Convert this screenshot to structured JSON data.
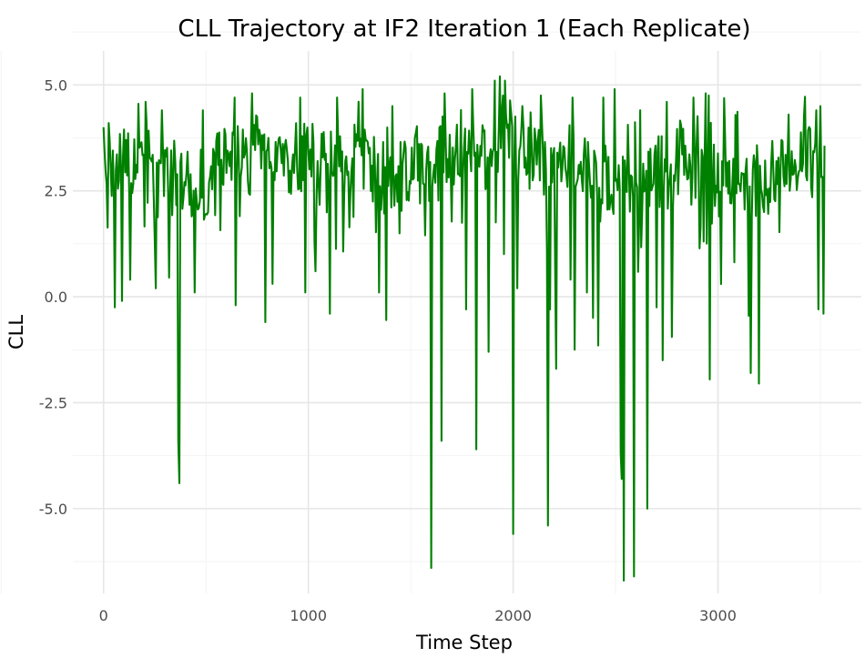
{
  "chart_data": {
    "type": "line",
    "title": "CLL Trajectory at IF2 Iteration 1 (Each Replicate)",
    "xlabel": "Time Step",
    "ylabel": "CLL",
    "xlim": [
      -150,
      3700
    ],
    "ylim": [
      -7.0,
      5.8
    ],
    "x_ticks": [
      0,
      1000,
      2000,
      3000
    ],
    "x_tick_labels": [
      "0",
      "1000",
      "2000",
      "3000"
    ],
    "y_ticks": [
      5.0,
      2.5,
      0.0,
      -2.5,
      -5.0
    ],
    "y_tick_labels": [
      "5.0",
      "2.5",
      "0.0",
      "-2.5",
      "-5.0"
    ],
    "grid": true,
    "legend": "none",
    "series": [
      {
        "color": "#008000",
        "x_start": 0,
        "x_end": 3520,
        "baseline": [
          [
            0,
            3.0
          ],
          [
            100,
            2.9
          ],
          [
            200,
            3.3
          ],
          [
            300,
            3.1
          ],
          [
            380,
            2.6
          ],
          [
            500,
            3.0
          ],
          [
            600,
            3.3
          ],
          [
            800,
            3.2
          ],
          [
            1000,
            3.1
          ],
          [
            1200,
            3.1
          ],
          [
            1400,
            2.9
          ],
          [
            1600,
            3.1
          ],
          [
            1800,
            3.4
          ],
          [
            1950,
            3.9
          ],
          [
            2050,
            3.3
          ],
          [
            2200,
            3.2
          ],
          [
            2400,
            3.0
          ],
          [
            2500,
            2.7
          ],
          [
            2600,
            2.6
          ],
          [
            2800,
            3.0
          ],
          [
            3000,
            3.1
          ],
          [
            3200,
            2.7
          ],
          [
            3400,
            3.2
          ],
          [
            3520,
            3.4
          ]
        ],
        "noise_amplitude": 0.75,
        "local_peaks": [
          [
            0,
            4.0
          ],
          [
            25,
            4.1
          ],
          [
            110,
            3.7
          ],
          [
            205,
            4.6
          ],
          [
            285,
            4.4
          ],
          [
            485,
            4.4
          ],
          [
            640,
            4.7
          ],
          [
            725,
            4.8
          ],
          [
            960,
            4.7
          ],
          [
            1140,
            4.7
          ],
          [
            1265,
            4.9
          ],
          [
            1410,
            4.5
          ],
          [
            1665,
            4.8
          ],
          [
            1800,
            4.9
          ],
          [
            1910,
            5.1
          ],
          [
            1935,
            5.2
          ],
          [
            1960,
            5.1
          ],
          [
            2045,
            4.5
          ],
          [
            2180,
            4.6
          ],
          [
            2290,
            4.7
          ],
          [
            2440,
            4.7
          ],
          [
            2495,
            4.9
          ],
          [
            2620,
            4.4
          ],
          [
            2750,
            4.6
          ],
          [
            2880,
            4.7
          ],
          [
            2940,
            4.8
          ],
          [
            3345,
            4.3
          ],
          [
            3480,
            4.4
          ],
          [
            3500,
            4.5
          ]
        ],
        "spikes": [
          [
            55,
            -0.25
          ],
          [
            90,
            -0.1
          ],
          [
            130,
            0.4
          ],
          [
            255,
            0.2
          ],
          [
            320,
            0.45
          ],
          [
            365,
            -3.4
          ],
          [
            368,
            -4.4
          ],
          [
            445,
            0.1
          ],
          [
            645,
            -0.2
          ],
          [
            790,
            -0.6
          ],
          [
            985,
            0.1
          ],
          [
            1035,
            0.6
          ],
          [
            1105,
            -0.4
          ],
          [
            1345,
            0.1
          ],
          [
            1380,
            -0.55
          ],
          [
            1600,
            -6.4
          ],
          [
            1650,
            -3.4
          ],
          [
            1770,
            -0.3
          ],
          [
            1820,
            -3.6
          ],
          [
            1880,
            -1.3
          ],
          [
            2000,
            -5.6
          ],
          [
            2020,
            0.2
          ],
          [
            2170,
            -5.4
          ],
          [
            2180,
            -0.3
          ],
          [
            2210,
            -1.7
          ],
          [
            2300,
            -1.25
          ],
          [
            2360,
            0.1
          ],
          [
            2390,
            -0.5
          ],
          [
            2415,
            -1.15
          ],
          [
            2525,
            -3.7
          ],
          [
            2532,
            -4.3
          ],
          [
            2538,
            -6.7
          ],
          [
            2590,
            -6.6
          ],
          [
            2655,
            -5.0
          ],
          [
            2700,
            -0.25
          ],
          [
            2730,
            -1.5
          ],
          [
            2775,
            -0.95
          ],
          [
            2960,
            -1.95
          ],
          [
            3015,
            0.3
          ],
          [
            3150,
            -0.45
          ],
          [
            3160,
            -1.8
          ],
          [
            3200,
            -2.05
          ],
          [
            3490,
            -0.3
          ],
          [
            3515,
            -0.4
          ]
        ]
      }
    ]
  }
}
